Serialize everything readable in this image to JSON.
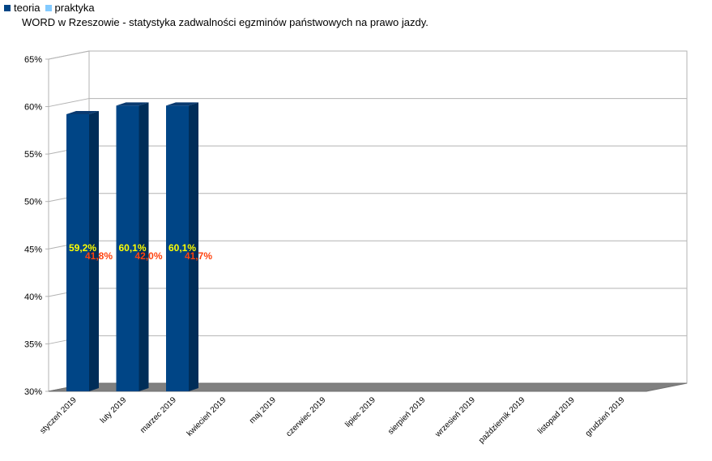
{
  "chart_data": {
    "type": "bar",
    "title": "WORD w Rzeszowie - statystyka zadwalności egzminów państwowych na prawo jazdy.",
    "categories": [
      "styczeń 2019",
      "luty 2019",
      "marzec 2019",
      "kwiecień 2019",
      "maj 2019",
      "czerwiec 2019",
      "lipiec 2019",
      "sierpień 2019",
      "wrzesień 2019",
      "październik 2019",
      "listopad 2019",
      "grudzień 2019"
    ],
    "series": [
      {
        "name": "teoria",
        "values": [
          59.2,
          60.1,
          60.1,
          null,
          null,
          null,
          null,
          null,
          null,
          null,
          null,
          null
        ],
        "labels": [
          "59,2%",
          "60,1%",
          "60,1%"
        ]
      },
      {
        "name": "praktyka",
        "values": [
          41.8,
          42.0,
          41.7,
          null,
          null,
          null,
          null,
          null,
          null,
          null,
          null,
          null
        ],
        "labels": [
          "41,8%",
          "42,0%",
          "41,7%"
        ]
      }
    ],
    "yticks": [
      "30%",
      "35%",
      "40%",
      "45%",
      "50%",
      "55%",
      "60%",
      "65%"
    ],
    "ylim": [
      30,
      65
    ],
    "legend": "top-left",
    "grid": true,
    "colors": {
      "teoria": "#004586",
      "praktyka": "#83caff",
      "teoria_label": "#ffff00",
      "praktyka_label": "#ff420e",
      "floor": "#808080"
    }
  }
}
